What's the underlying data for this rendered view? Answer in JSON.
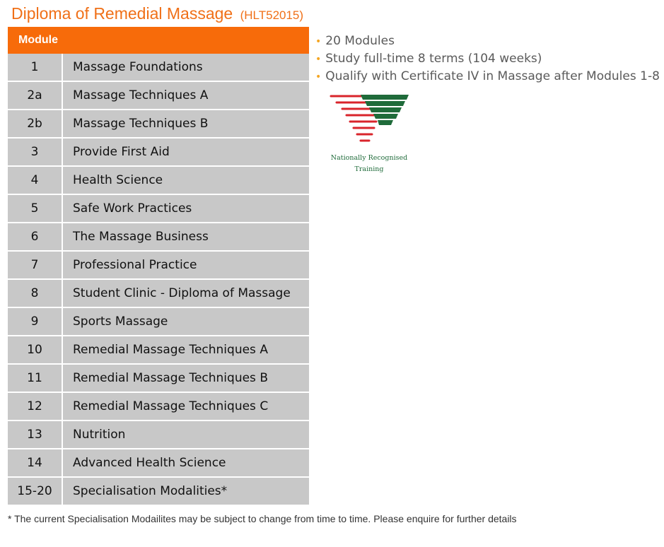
{
  "header": {
    "title": "Diploma of Remedial Massage",
    "code": "(HLT52015)"
  },
  "table": {
    "header": "Module",
    "rows": [
      {
        "num": "1",
        "name": "Massage Foundations"
      },
      {
        "num": "2a",
        "name": "Massage Techniques A"
      },
      {
        "num": "2b",
        "name": "Massage Techniques B"
      },
      {
        "num": "3",
        "name": "Provide First Aid"
      },
      {
        "num": "4",
        "name": "Health Science"
      },
      {
        "num": "5",
        "name": "Safe Work Practices"
      },
      {
        "num": "6",
        "name": "The Massage Business"
      },
      {
        "num": "7",
        "name": "Professional Practice"
      },
      {
        "num": "8",
        "name": "Student Clinic - Diploma of Massage"
      },
      {
        "num": "9",
        "name": "Sports Massage"
      },
      {
        "num": "10",
        "name": "Remedial Massage Techniques A"
      },
      {
        "num": "11",
        "name": "Remedial Massage Techniques B"
      },
      {
        "num": "12",
        "name": "Remedial Massage Techniques C"
      },
      {
        "num": "13",
        "name": "Nutrition"
      },
      {
        "num": "14",
        "name": "Advanced Health Science"
      },
      {
        "num": "15-20",
        "name": "Specialisation Modalities*"
      }
    ]
  },
  "bullets": [
    "20 Modules",
    "Study full-time 8 terms (104 weeks)",
    "Qualify with Certificate IV in Massage after Modules 1-8"
  ],
  "logo": {
    "line1": "Nationally Recognised",
    "line2": "Training",
    "red": "#d9242b",
    "green": "#1f6b3a"
  },
  "footnote": "* The current Specialisation Modailites may be subject to change from time to time. Please enquire for further details",
  "colors": {
    "accent": "#f76b0a",
    "title": "#f07018",
    "row_bg": "#c8c8c8",
    "bullet": "#f5a623"
  }
}
